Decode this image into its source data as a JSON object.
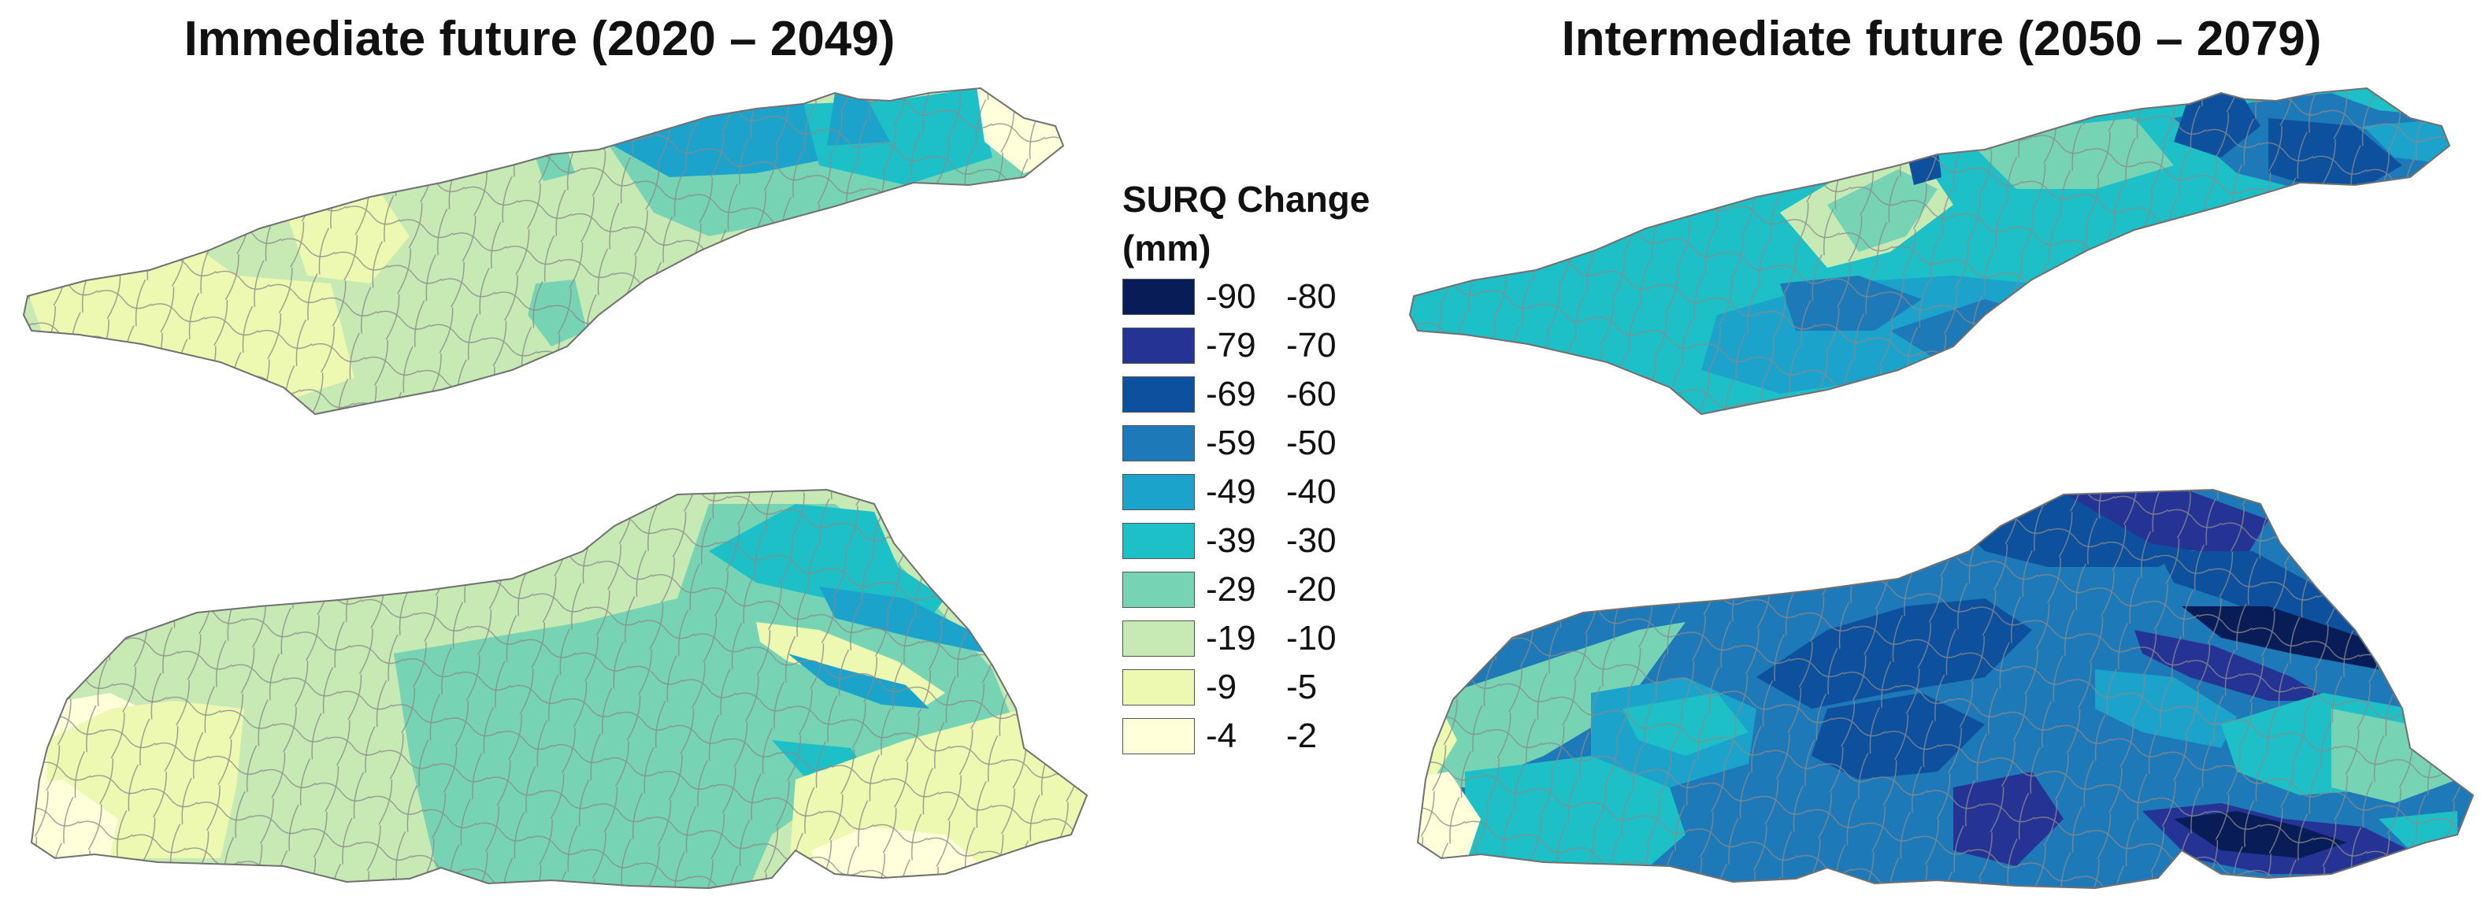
{
  "titles": {
    "left": "Immediate future (2020 – 2049)",
    "right": "Intermediate future (2050 – 2079)"
  },
  "legend": {
    "title": "SURQ Change (mm)",
    "classes": [
      {
        "low": "-90",
        "high": "-80",
        "color": "#081d58"
      },
      {
        "low": "-79",
        "high": "-70",
        "color": "#253494"
      },
      {
        "low": "-69",
        "high": "-60",
        "color": "#0c509e"
      },
      {
        "low": "-59",
        "high": "-50",
        "color": "#1d79b8"
      },
      {
        "low": "-49",
        "high": "-40",
        "color": "#1ba3cc"
      },
      {
        "low": "-39",
        "high": "-30",
        "color": "#1cc0c6"
      },
      {
        "low": "-29",
        "high": "-20",
        "color": "#76d4b5"
      },
      {
        "low": "-19",
        "high": "-10",
        "color": "#c7e9b4"
      },
      {
        "low": "-9",
        "high": "-5",
        "color": "#edf8b1"
      },
      {
        "low": "-4",
        "high": "-2",
        "color": "#ffffd9"
      }
    ]
  }
}
